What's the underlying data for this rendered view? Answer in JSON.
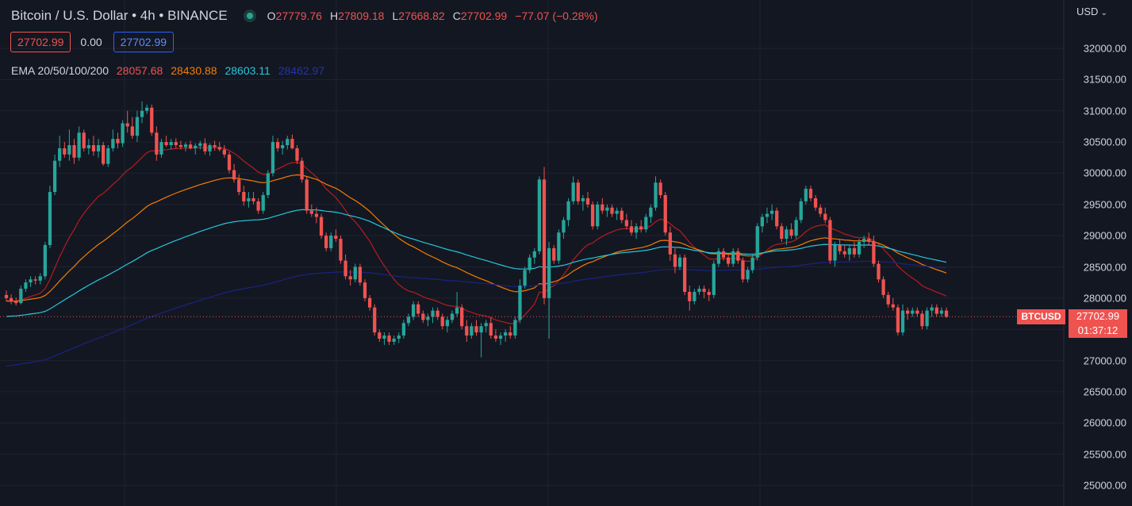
{
  "header": {
    "title": "Bitcoin / U.S. Dollar • 4h • BINANCE",
    "ohlc": {
      "o_label": "O",
      "o": "27779.76",
      "h_label": "H",
      "h": "27809.18",
      "l_label": "L",
      "l": "27668.82",
      "c_label": "C",
      "c": "27702.99",
      "change": "−77.07 (−0.28%)"
    }
  },
  "trade": {
    "sell": "27702.99",
    "spread": "0.00",
    "buy": "27702.99"
  },
  "ema": {
    "label": "EMA 20/50/100/200",
    "v20": "28057.68",
    "v50": "28430.88",
    "v100": "28603.11",
    "v200": "28462.97"
  },
  "currency": {
    "label": "USD"
  },
  "colors": {
    "up": "#26a69a",
    "down": "#ef5350",
    "ema20": "#b71c1c",
    "ema50": "#f57c00",
    "ema100": "#26c6da",
    "ema200": "#1a237e",
    "bg": "#131722"
  },
  "last_price": {
    "symbol": "BTCUSD",
    "price": "27702.99",
    "countdown": "01:37:12"
  },
  "chart_data": {
    "type": "candlestick",
    "y_ticks": [
      "32000.00",
      "31500.00",
      "31000.00",
      "30500.00",
      "30000.00",
      "29500.00",
      "29000.00",
      "28500.00",
      "28000.00",
      "27500.00",
      "27000.00",
      "26500.00",
      "26000.00",
      "25500.00",
      "25000.00"
    ],
    "ylim": [
      24850,
      32250
    ],
    "grid": true,
    "candles": [
      [
        28050,
        28120,
        27950,
        28000
      ],
      [
        28000,
        28060,
        27900,
        27950
      ],
      [
        27950,
        28010,
        27880,
        27920
      ],
      [
        27920,
        28200,
        27900,
        28150
      ],
      [
        28150,
        28300,
        28100,
        28250
      ],
      [
        28250,
        28350,
        28180,
        28300
      ],
      [
        28300,
        28350,
        28220,
        28280
      ],
      [
        28280,
        28400,
        28220,
        28350
      ],
      [
        28350,
        28900,
        28300,
        28850
      ],
      [
        28850,
        29800,
        28800,
        29700
      ],
      [
        29700,
        30300,
        29650,
        30200
      ],
      [
        30200,
        30600,
        30100,
        30400
      ],
      [
        30400,
        30500,
        30250,
        30300
      ],
      [
        30300,
        30700,
        30200,
        30450
      ],
      [
        30450,
        30550,
        30150,
        30250
      ],
      [
        30250,
        30750,
        30200,
        30650
      ],
      [
        30650,
        30700,
        30350,
        30400
      ],
      [
        30400,
        30550,
        30300,
        30450
      ],
      [
        30450,
        30600,
        30280,
        30350
      ],
      [
        30350,
        30550,
        30250,
        30450
      ],
      [
        30450,
        30500,
        30120,
        30150
      ],
      [
        30150,
        30450,
        30100,
        30400
      ],
      [
        30400,
        30700,
        30350,
        30550
      ],
      [
        30550,
        30650,
        30400,
        30480
      ],
      [
        30480,
        30850,
        30420,
        30800
      ],
      [
        30800,
        31000,
        30650,
        30750
      ],
      [
        30750,
        30900,
        30550,
        30600
      ],
      [
        30600,
        31000,
        30500,
        30900
      ],
      [
        30900,
        31150,
        30800,
        31000
      ],
      [
        31000,
        31100,
        30950,
        31050
      ],
      [
        31050,
        31100,
        30600,
        30650
      ],
      [
        30650,
        30750,
        30200,
        30300
      ],
      [
        30300,
        30550,
        30250,
        30500
      ],
      [
        30500,
        30600,
        30420,
        30450
      ],
      [
        30450,
        30550,
        30380,
        30500
      ],
      [
        30500,
        30560,
        30400,
        30450
      ],
      [
        30450,
        30520,
        30380,
        30420
      ],
      [
        30420,
        30500,
        30350,
        30460
      ],
      [
        30460,
        30520,
        30380,
        30400
      ],
      [
        30400,
        30480,
        30300,
        30440
      ],
      [
        30440,
        30520,
        30380,
        30480
      ],
      [
        30480,
        30560,
        30300,
        30350
      ],
      [
        30350,
        30480,
        30280,
        30450
      ],
      [
        30450,
        30520,
        30360,
        30420
      ],
      [
        30420,
        30500,
        30350,
        30380
      ],
      [
        30380,
        30450,
        30250,
        30300
      ],
      [
        30300,
        30350,
        30000,
        30050
      ],
      [
        30050,
        30150,
        29850,
        29900
      ],
      [
        29900,
        29980,
        29650,
        29700
      ],
      [
        29700,
        29800,
        29480,
        29550
      ],
      [
        29550,
        29700,
        29450,
        29600
      ],
      [
        29600,
        29700,
        29500,
        29550
      ],
      [
        29550,
        29600,
        29350,
        29400
      ],
      [
        29400,
        29700,
        29350,
        29650
      ],
      [
        29650,
        30050,
        29600,
        30000
      ],
      [
        30000,
        30600,
        29950,
        30500
      ],
      [
        30500,
        30560,
        30350,
        30400
      ],
      [
        30400,
        30520,
        30300,
        30450
      ],
      [
        30450,
        30600,
        30380,
        30550
      ],
      [
        30550,
        30620,
        30380,
        30400
      ],
      [
        30400,
        30450,
        30150,
        30200
      ],
      [
        30200,
        30250,
        29850,
        29900
      ],
      [
        29900,
        29950,
        29350,
        29400
      ],
      [
        29400,
        29500,
        29300,
        29350
      ],
      [
        29350,
        29450,
        29200,
        29300
      ],
      [
        29300,
        29350,
        28950,
        29000
      ],
      [
        29000,
        29050,
        28750,
        28800
      ],
      [
        28800,
        29050,
        28750,
        29000
      ],
      [
        29000,
        29100,
        28900,
        28950
      ],
      [
        28950,
        29000,
        28550,
        28600
      ],
      [
        28600,
        28700,
        28300,
        28350
      ],
      [
        28350,
        28450,
        28200,
        28300
      ],
      [
        28300,
        28550,
        28250,
        28500
      ],
      [
        28500,
        28550,
        28200,
        28250
      ],
      [
        28250,
        28300,
        27950,
        28000
      ],
      [
        28000,
        28050,
        27800,
        27850
      ],
      [
        27850,
        27900,
        27400,
        27450
      ],
      [
        27450,
        27500,
        27300,
        27350
      ],
      [
        27350,
        27450,
        27250,
        27400
      ],
      [
        27400,
        27450,
        27250,
        27300
      ],
      [
        27300,
        27400,
        27250,
        27350
      ],
      [
        27350,
        27450,
        27280,
        27400
      ],
      [
        27400,
        27650,
        27350,
        27600
      ],
      [
        27600,
        27750,
        27550,
        27700
      ],
      [
        27700,
        27950,
        27650,
        27900
      ],
      [
        27900,
        27950,
        27700,
        27750
      ],
      [
        27750,
        27800,
        27600,
        27650
      ],
      [
        27650,
        27750,
        27550,
        27700
      ],
      [
        27700,
        27850,
        27600,
        27800
      ],
      [
        27800,
        27850,
        27650,
        27700
      ],
      [
        27700,
        27750,
        27500,
        27550
      ],
      [
        27550,
        27700,
        27450,
        27650
      ],
      [
        27650,
        27800,
        27600,
        27750
      ],
      [
        27750,
        28100,
        27700,
        27850
      ],
      [
        27850,
        27900,
        27500,
        27550
      ],
      [
        27550,
        27650,
        27300,
        27400
      ],
      [
        27400,
        27600,
        27350,
        27550
      ],
      [
        27550,
        27650,
        27400,
        27450
      ],
      [
        27450,
        27600,
        27050,
        27550
      ],
      [
        27550,
        27650,
        27450,
        27600
      ],
      [
        27600,
        27700,
        27350,
        27400
      ],
      [
        27400,
        27500,
        27300,
        27350
      ],
      [
        27350,
        27450,
        27250,
        27400
      ],
      [
        27400,
        27500,
        27300,
        27450
      ],
      [
        27450,
        27550,
        27350,
        27400
      ],
      [
        27400,
        27700,
        27350,
        27650
      ],
      [
        27650,
        28300,
        27600,
        28200
      ],
      [
        28200,
        28500,
        28150,
        28450
      ],
      [
        28450,
        28700,
        28400,
        28650
      ],
      [
        28650,
        28800,
        28550,
        28750
      ],
      [
        28750,
        29950,
        28700,
        29900
      ],
      [
        29900,
        30100,
        27900,
        28000
      ],
      [
        28000,
        28900,
        27350,
        28800
      ],
      [
        28800,
        28850,
        28550,
        28600
      ],
      [
        28600,
        29100,
        28550,
        29050
      ],
      [
        29050,
        29300,
        28950,
        29250
      ],
      [
        29250,
        29600,
        29150,
        29550
      ],
      [
        29550,
        29950,
        29500,
        29850
      ],
      [
        29850,
        29900,
        29500,
        29550
      ],
      [
        29550,
        29650,
        29400,
        29600
      ],
      [
        29600,
        29700,
        29450,
        29500
      ],
      [
        29500,
        29550,
        29100,
        29150
      ],
      [
        29150,
        29550,
        29100,
        29500
      ],
      [
        29500,
        29600,
        29350,
        29400
      ],
      [
        29400,
        29500,
        29300,
        29450
      ],
      [
        29450,
        29500,
        29300,
        29350
      ],
      [
        29350,
        29450,
        29250,
        29400
      ],
      [
        29400,
        29450,
        29200,
        29250
      ],
      [
        29250,
        29350,
        29100,
        29150
      ],
      [
        29150,
        29250,
        29000,
        29050
      ],
      [
        29050,
        29200,
        28950,
        29150
      ],
      [
        29150,
        29250,
        29050,
        29100
      ],
      [
        29100,
        29350,
        29050,
        29300
      ],
      [
        29300,
        29500,
        29200,
        29450
      ],
      [
        29450,
        29950,
        29400,
        29850
      ],
      [
        29850,
        29900,
        29600,
        29650
      ],
      [
        29650,
        29700,
        29000,
        29050
      ],
      [
        29050,
        29150,
        28600,
        28700
      ],
      [
        28700,
        28800,
        28400,
        28500
      ],
      [
        28500,
        28700,
        28450,
        28650
      ],
      [
        28650,
        28700,
        28050,
        28100
      ],
      [
        28100,
        28200,
        27800,
        27950
      ],
      [
        27950,
        28150,
        27900,
        28100
      ],
      [
        28100,
        28200,
        28050,
        28150
      ],
      [
        28150,
        28200,
        28000,
        28100
      ],
      [
        28100,
        28150,
        27950,
        28050
      ],
      [
        28050,
        28600,
        28000,
        28550
      ],
      [
        28550,
        28800,
        28500,
        28750
      ],
      [
        28750,
        28800,
        28600,
        28650
      ],
      [
        28650,
        28700,
        28500,
        28550
      ],
      [
        28550,
        28800,
        28500,
        28750
      ],
      [
        28750,
        28800,
        28550,
        28600
      ],
      [
        28600,
        28650,
        28250,
        28300
      ],
      [
        28300,
        28500,
        28250,
        28450
      ],
      [
        28450,
        28700,
        28400,
        28650
      ],
      [
        28650,
        29200,
        28600,
        29150
      ],
      [
        29150,
        29350,
        29050,
        29300
      ],
      [
        29300,
        29450,
        29200,
        29350
      ],
      [
        29350,
        29500,
        29250,
        29400
      ],
      [
        29400,
        29450,
        29100,
        29150
      ],
      [
        29150,
        29200,
        28900,
        28950
      ],
      [
        28950,
        29150,
        28850,
        29100
      ],
      [
        29100,
        29200,
        28950,
        29000
      ],
      [
        29000,
        29300,
        28950,
        29250
      ],
      [
        29250,
        29600,
        29200,
        29550
      ],
      [
        29550,
        29800,
        29500,
        29750
      ],
      [
        29750,
        29800,
        29550,
        29600
      ],
      [
        29600,
        29650,
        29400,
        29450
      ],
      [
        29450,
        29500,
        29300,
        29350
      ],
      [
        29350,
        29450,
        29200,
        29250
      ],
      [
        29250,
        29300,
        28550,
        28600
      ],
      [
        28600,
        28900,
        28500,
        28850
      ],
      [
        28850,
        28950,
        28700,
        28750
      ],
      [
        28750,
        28850,
        28650,
        28700
      ],
      [
        28700,
        28850,
        28600,
        28800
      ],
      [
        28800,
        28900,
        28650,
        28700
      ],
      [
        28700,
        28950,
        28650,
        28900
      ],
      [
        28900,
        29000,
        28800,
        28950
      ],
      [
        28950,
        29050,
        28850,
        28900
      ],
      [
        28900,
        29000,
        28500,
        28550
      ],
      [
        28550,
        28600,
        28250,
        28300
      ],
      [
        28300,
        28350,
        28000,
        28050
      ],
      [
        28050,
        28100,
        27850,
        27900
      ],
      [
        27900,
        28000,
        27800,
        27850
      ],
      [
        27850,
        27900,
        27400,
        27450
      ],
      [
        27450,
        27900,
        27400,
        27800
      ],
      [
        27800,
        27850,
        27650,
        27750
      ],
      [
        27750,
        27850,
        27700,
        27800
      ],
      [
        27800,
        27850,
        27700,
        27750
      ],
      [
        27750,
        27800,
        27500,
        27550
      ],
      [
        27550,
        27850,
        27500,
        27800
      ],
      [
        27800,
        27900,
        27700,
        27850
      ],
      [
        27850,
        27900,
        27700,
        27750
      ],
      [
        27750,
        27850,
        27700,
        27800
      ],
      [
        27800,
        27850,
        27680,
        27700
      ]
    ]
  }
}
